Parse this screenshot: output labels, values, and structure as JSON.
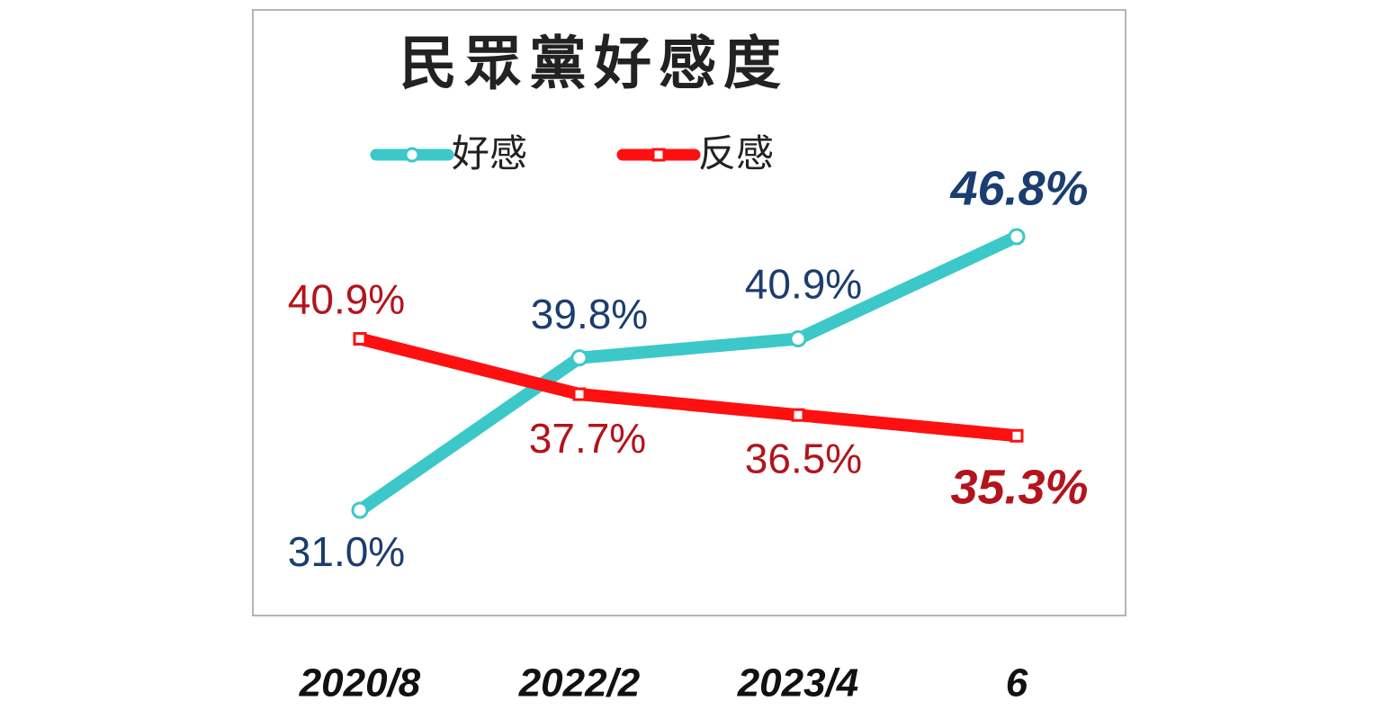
{
  "chart_data": {
    "type": "line",
    "title": "民眾黨好感度",
    "categories": [
      "2020/8",
      "2022/2",
      "2023/4",
      "6"
    ],
    "series": [
      {
        "name": "好感",
        "color": "#3cc8c8",
        "label_color": "#1b3d6f",
        "marker": "circle",
        "values": [
          31.0,
          39.8,
          40.9,
          46.8
        ],
        "value_labels": [
          "31.0%",
          "39.8%",
          "40.9%",
          "46.8%"
        ]
      },
      {
        "name": "反感",
        "color": "#ff1010",
        "label_color": "#b3141c",
        "marker": "square",
        "values": [
          40.9,
          37.7,
          36.5,
          35.3
        ],
        "value_labels": [
          "40.9%",
          "37.7%",
          "36.5%",
          "35.3%"
        ]
      }
    ]
  }
}
